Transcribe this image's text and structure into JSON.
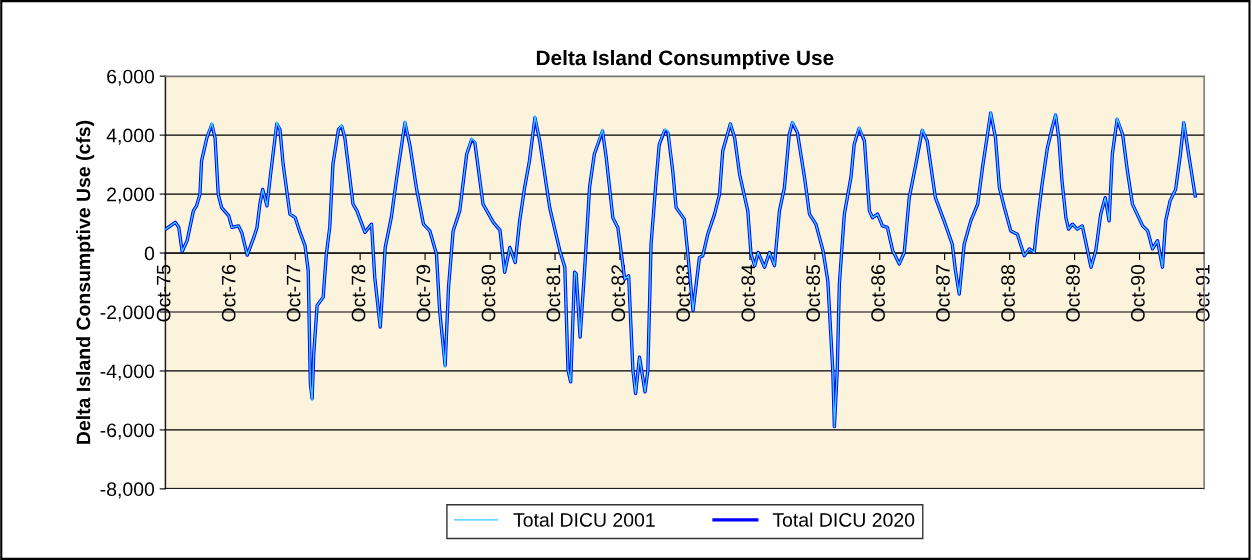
{
  "chart_data": {
    "type": "line",
    "title": "Delta Island Consumptive Use",
    "ylabel": "Delta Island Consumptive Use (cfs)",
    "x": [
      "1975-10-01",
      "1975-11-27",
      "1975-12-16",
      "1976-01-04",
      "1976-02-01",
      "1976-03-07",
      "1976-03-25",
      "1976-04-13",
      "1976-04-22",
      "1976-05-22",
      "1976-06-19",
      "1976-07-07",
      "1976-07-25",
      "1976-08-13",
      "1976-09-22",
      "1976-10-10",
      "1976-11-16",
      "1976-12-04",
      "1977-01-04",
      "1977-02-10",
      "1977-02-28",
      "1977-03-16",
      "1977-04-01",
      "1977-04-25",
      "1977-05-13",
      "1977-06-19",
      "1977-07-07",
      "1977-07-25",
      "1977-09-01",
      "1977-10-01",
      "1977-10-28",
      "1977-11-25",
      "1977-12-13",
      "1977-12-25",
      "1978-01-04",
      "1978-01-13",
      "1978-02-01",
      "1978-03-07",
      "1978-03-25",
      "1978-04-13",
      "1978-05-01",
      "1978-06-01",
      "1978-06-19",
      "1978-07-07",
      "1978-08-22",
      "1978-09-13",
      "1978-10-28",
      "1978-12-04",
      "1978-12-22",
      "1979-01-22",
      "1979-02-19",
      "1979-03-25",
      "1979-04-22",
      "1979-06-10",
      "1979-07-07",
      "1979-08-13",
      "1979-09-22",
      "1979-10-28",
      "1979-12-04",
      "1979-12-22",
      "1980-01-22",
      "1980-02-10",
      "1980-03-07",
      "1980-04-13",
      "1980-05-22",
      "1980-06-19",
      "1980-07-07",
      "1980-08-22",
      "1980-10-19",
      "1980-11-25",
      "1980-12-22",
      "1981-01-20",
      "1981-02-19",
      "1981-03-16",
      "1981-04-13",
      "1981-05-10",
      "1981-06-10",
      "1981-07-07",
      "1981-09-01",
      "1981-10-28",
      "1981-11-25",
      "1981-12-13",
      "1981-12-28",
      "1982-01-19",
      "1982-01-28",
      "1982-02-19",
      "1982-03-16",
      "1982-04-13",
      "1982-05-10",
      "1982-06-25",
      "1982-07-16",
      "1982-08-22",
      "1982-09-19",
      "1982-10-28",
      "1982-11-19",
      "1982-12-13",
      "1982-12-28",
      "1983-01-19",
      "1983-02-19",
      "1983-03-07",
      "1983-03-25",
      "1983-04-22",
      "1983-05-10",
      "1983-06-10",
      "1983-06-28",
      "1983-07-25",
      "1983-08-13",
      "1983-09-28",
      "1983-10-16",
      "1983-11-16",
      "1983-12-22",
      "1984-01-10",
      "1984-02-07",
      "1984-03-16",
      "1984-04-13",
      "1984-05-01",
      "1984-06-13",
      "1984-07-07",
      "1984-08-04",
      "1984-09-19",
      "1984-10-07",
      "1984-10-28",
      "1984-11-16",
      "1984-12-22",
      "1985-01-19",
      "1985-02-16",
      "1985-03-16",
      "1985-04-13",
      "1985-05-10",
      "1985-05-28",
      "1985-06-25",
      "1985-08-04",
      "1985-09-01",
      "1985-10-07",
      "1985-11-16",
      "1985-12-13",
      "1986-01-10",
      "1986-01-19",
      "1986-02-04",
      "1986-02-16",
      "1986-03-16",
      "1986-04-22",
      "1986-05-10",
      "1986-06-07",
      "1986-07-07",
      "1986-08-04",
      "1986-08-22",
      "1986-09-19",
      "1986-10-16",
      "1986-11-13",
      "1986-12-13",
      "1987-01-19",
      "1987-02-16",
      "1987-03-16",
      "1987-04-22",
      "1987-05-28",
      "1987-06-25",
      "1987-08-10",
      "1987-09-28",
      "1987-11-13",
      "1987-12-01",
      "1987-12-22",
      "1988-01-19",
      "1988-02-25",
      "1988-04-04",
      "1988-05-01",
      "1988-06-16",
      "1988-07-13",
      "1988-08-04",
      "1988-09-01",
      "1988-10-07",
      "1988-11-13",
      "1988-12-22",
      "1989-01-19",
      "1989-02-16",
      "1989-03-04",
      "1989-04-01",
      "1989-05-01",
      "1989-05-28",
      "1989-06-16",
      "1989-07-04",
      "1989-07-22",
      "1989-08-13",
      "1989-08-28",
      "1989-09-19",
      "1989-10-16",
      "1989-11-13",
      "1989-12-01",
      "1990-01-01",
      "1990-01-28",
      "1990-02-25",
      "1990-03-22",
      "1990-04-13",
      "1990-05-01",
      "1990-05-28",
      "1990-06-28",
      "1990-07-25",
      "1990-08-22",
      "1990-10-19",
      "1990-11-16",
      "1990-12-13",
      "1991-01-10",
      "1991-02-07",
      "1991-02-25",
      "1991-03-22",
      "1991-04-22",
      "1991-05-19",
      "1991-06-07",
      "1991-07-04",
      "1991-07-22",
      "1991-08-10"
    ],
    "series": [
      {
        "name": "Total DICU 2001",
        "color": "#33ccff",
        "values": [
          800,
          1040,
          870,
          50,
          420,
          1430,
          1600,
          1990,
          3120,
          3910,
          4420,
          3910,
          1990,
          1540,
          1260,
          870,
          920,
          700,
          -70,
          530,
          870,
          1660,
          2160,
          1600,
          2560,
          4440,
          4190,
          3010,
          1320,
          1200,
          700,
          250,
          -600,
          -4430,
          -5000,
          -3410,
          -1780,
          -1500,
          -30,
          870,
          3010,
          4190,
          4360,
          3910,
          1660,
          1430,
          700,
          980,
          -820,
          -2510,
          190,
          1200,
          2440,
          4480,
          3680,
          2220,
          980,
          750,
          -30,
          -1950,
          -3880,
          -1160,
          750,
          1430,
          3350,
          3900,
          3780,
          1660,
          1040,
          780,
          -650,
          190,
          -320,
          1090,
          2220,
          3120,
          4650,
          3800,
          1540,
          80,
          -480,
          -3980,
          -4370,
          -650,
          -710,
          -2850,
          -600,
          2220,
          3350,
          4200,
          3230,
          1200,
          870,
          -880,
          -770,
          -3980,
          -4770,
          -3530,
          -4710,
          -3980,
          300,
          2440,
          3680,
          4200,
          4150,
          2780,
          1540,
          1150,
          80,
          -1950,
          -150,
          -90,
          640,
          1320,
          1990,
          3460,
          4400,
          3910,
          2670,
          1430,
          -30,
          -430,
          20,
          -480,
          20,
          -430,
          1430,
          2220,
          4020,
          4470,
          4080,
          2560,
          1320,
          980,
          80,
          -940,
          -3980,
          -5900,
          -3980,
          -1050,
          1320,
          2560,
          3680,
          4280,
          3800,
          1430,
          1200,
          1320,
          920,
          870,
          80,
          -370,
          20,
          1880,
          3010,
          4200,
          3800,
          1880,
          1090,
          300,
          -600,
          -1390,
          300,
          1090,
          1660,
          2900,
          4800,
          3910,
          2220,
          1540,
          750,
          640,
          -90,
          140,
          20,
          980,
          2330,
          3570,
          4250,
          4720,
          3910,
          2450,
          1200,
          810,
          980,
          810,
          920,
          420,
          -480,
          80,
          1320,
          1880,
          1090,
          3350,
          4580,
          4020,
          2780,
          1660,
          920,
          750,
          140,
          420,
          -480,
          1090,
          1770,
          2160,
          3350,
          4460,
          3350,
          2670,
          1940
        ]
      },
      {
        "name": "Total DICU 2020",
        "color": "#0000ff",
        "values": [
          800,
          1040,
          870,
          50,
          420,
          1430,
          1600,
          1990,
          3120,
          3910,
          4360,
          3910,
          1990,
          1540,
          1260,
          870,
          920,
          700,
          -70,
          530,
          870,
          1660,
          2160,
          1600,
          2560,
          4380,
          4190,
          3010,
          1320,
          1200,
          700,
          250,
          -600,
          -4430,
          -4940,
          -3410,
          -1780,
          -1500,
          -30,
          870,
          3010,
          4190,
          4300,
          3910,
          1660,
          1430,
          700,
          980,
          -820,
          -2510,
          190,
          1200,
          2440,
          4420,
          3680,
          2220,
          980,
          750,
          -30,
          -1950,
          -3810,
          -1160,
          750,
          1430,
          3350,
          3850,
          3740,
          1660,
          1040,
          780,
          -650,
          190,
          -320,
          1090,
          2220,
          3120,
          4590,
          3800,
          1540,
          80,
          -480,
          -3980,
          -4370,
          -650,
          -710,
          -2850,
          -600,
          2220,
          3350,
          4140,
          3230,
          1200,
          870,
          -880,
          -770,
          -3980,
          -4770,
          -3530,
          -4710,
          -3980,
          300,
          2440,
          3680,
          4160,
          4080,
          2780,
          1540,
          1150,
          80,
          -1950,
          -150,
          -90,
          640,
          1320,
          1990,
          3460,
          4380,
          3910,
          2670,
          1430,
          -30,
          -430,
          20,
          -480,
          20,
          -430,
          1430,
          2220,
          4020,
          4420,
          4080,
          2560,
          1320,
          980,
          80,
          -940,
          -3980,
          -5890,
          -3980,
          -1050,
          1320,
          2560,
          3680,
          4230,
          3800,
          1430,
          1200,
          1320,
          920,
          870,
          80,
          -370,
          20,
          1880,
          3010,
          4160,
          3800,
          1880,
          1090,
          300,
          -600,
          -1390,
          300,
          1090,
          1660,
          2900,
          4750,
          3910,
          2220,
          1540,
          750,
          640,
          -90,
          140,
          20,
          980,
          2330,
          3570,
          4250,
          4680,
          3910,
          2450,
          1200,
          810,
          980,
          810,
          920,
          420,
          -480,
          80,
          1320,
          1880,
          1090,
          3350,
          4530,
          4020,
          2780,
          1660,
          920,
          750,
          140,
          420,
          -480,
          1090,
          1770,
          2160,
          3350,
          4420,
          3350,
          2670,
          1940
        ]
      }
    ],
    "xlim": [
      "1975-10-01",
      "1991-10-01"
    ],
    "xticks": [
      {
        "value": "1975-10",
        "label": "Oct-75"
      },
      {
        "value": "1976-10",
        "label": "Oct-76"
      },
      {
        "value": "1977-10",
        "label": "Oct-77"
      },
      {
        "value": "1978-10",
        "label": "Oct-78"
      },
      {
        "value": "1979-10",
        "label": "Oct-79"
      },
      {
        "value": "1980-10",
        "label": "Oct-80"
      },
      {
        "value": "1981-10",
        "label": "Oct-81"
      },
      {
        "value": "1982-10",
        "label": "Oct-82"
      },
      {
        "value": "1983-10",
        "label": "Oct-83"
      },
      {
        "value": "1984-10",
        "label": "Oct-84"
      },
      {
        "value": "1985-10",
        "label": "Oct-85"
      },
      {
        "value": "1986-10",
        "label": "Oct-86"
      },
      {
        "value": "1987-10",
        "label": "Oct-87"
      },
      {
        "value": "1988-10",
        "label": "Oct-88"
      },
      {
        "value": "1989-10",
        "label": "Oct-89"
      },
      {
        "value": "1990-10",
        "label": "Oct-90"
      },
      {
        "value": "1991-10",
        "label": "Oct-91"
      }
    ],
    "ylim": [
      -8000,
      6000
    ],
    "yticks": [
      {
        "value": -8000,
        "label": "-8,000"
      },
      {
        "value": -6000,
        "label": "-6,000"
      },
      {
        "value": -4000,
        "label": "-4,000"
      },
      {
        "value": -2000,
        "label": "-2,000"
      },
      {
        "value": 0,
        "label": "0"
      },
      {
        "value": 2000,
        "label": "2,000"
      },
      {
        "value": 4000,
        "label": "4,000"
      },
      {
        "value": 6000,
        "label": "6,000"
      }
    ],
    "grid": "y",
    "legend": "bottom",
    "marker": "none",
    "line_style": "solid"
  }
}
